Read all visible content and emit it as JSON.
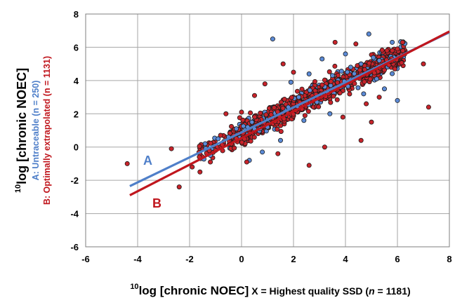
{
  "chart_data": {
    "type": "scatter",
    "x_axis": {
      "label_sup": "10",
      "label_main": "log [chronic NOEC]",
      "label_rest": " X = Highest quality SSD (",
      "label_n": "n",
      "label_end": " = 1181)",
      "range": [
        -6,
        8
      ],
      "ticks": [
        "-6",
        "-4",
        "-2",
        "0",
        "2",
        "4",
        "6",
        "8"
      ]
    },
    "y_axis": {
      "label_sup": "10",
      "label_main": "log [chronic NOEC]",
      "line_a": "A: Untraceable (n = 250)",
      "line_b": "B: Optimally extrapolated (n = 1131)",
      "range": [
        -6,
        8
      ],
      "ticks": [
        "-6",
        "-4",
        "-2",
        "0",
        "2",
        "4",
        "6",
        "8"
      ]
    },
    "grid": true,
    "series": [
      {
        "name": "A: Untraceable (n = 250)",
        "short": "A",
        "color": "#4f7fc9",
        "marker_color": "#5b8ad6",
        "fit": {
          "x": [
            -4.3,
            8.0
          ],
          "y": [
            -2.35,
            6.9
          ]
        },
        "points": [
          [
            1.2,
            6.5
          ],
          [
            4.9,
            6.8
          ],
          [
            5.8,
            6.3
          ],
          [
            5.3,
            5.2
          ],
          [
            4.6,
            5.0
          ],
          [
            4.2,
            4.8
          ],
          [
            3.8,
            3.6
          ],
          [
            3.1,
            5.3
          ],
          [
            2.6,
            4.4
          ],
          [
            2.2,
            3.0
          ],
          [
            1.8,
            2.4
          ],
          [
            1.0,
            1.2
          ],
          [
            0.4,
            1.5
          ],
          [
            -0.5,
            0.6
          ],
          [
            -1.2,
            -0.5
          ],
          [
            -1.4,
            0.2
          ],
          [
            0.3,
            -0.8
          ],
          [
            5.2,
            4.1
          ],
          [
            6.0,
            2.8
          ],
          [
            5.5,
            3.5
          ],
          [
            3.4,
            2.0
          ],
          [
            2.9,
            2.7
          ],
          [
            1.5,
            0.4
          ],
          [
            0.8,
            -0.3
          ],
          [
            4.0,
            5.6
          ],
          [
            3.5,
            4.3
          ],
          [
            2.4,
            1.6
          ],
          [
            -0.2,
            1.1
          ],
          [
            1.9,
            3.9
          ],
          [
            4.7,
            3.2
          ]
        ]
      },
      {
        "name": "B: Optimally extrapolated (n = 1131)",
        "short": "B",
        "color": "#c0161d",
        "marker_color": "#c8232a",
        "fit": {
          "x": [
            -4.3,
            8.0
          ],
          "y": [
            -2.9,
            6.95
          ]
        },
        "points": [
          [
            -4.4,
            -1.0
          ],
          [
            -2.7,
            -0.1
          ],
          [
            -2.4,
            -2.4
          ],
          [
            -1.6,
            -1.5
          ],
          [
            -1.0,
            -0.2
          ],
          [
            -0.6,
            2.0
          ],
          [
            0.0,
            2.1
          ],
          [
            0.5,
            3.1
          ],
          [
            2.6,
            -1.1
          ],
          [
            3.2,
            0.0
          ],
          [
            4.6,
            0.4
          ],
          [
            5.0,
            1.5
          ],
          [
            5.6,
            5.8
          ],
          [
            6.2,
            6.3
          ],
          [
            7.0,
            5.0
          ],
          [
            7.2,
            2.4
          ],
          [
            3.6,
            6.3
          ],
          [
            4.4,
            6.2
          ],
          [
            1.6,
            5.0
          ],
          [
            2.0,
            4.5
          ],
          [
            0.9,
            3.8
          ],
          [
            3.9,
            1.8
          ],
          [
            1.4,
            -0.4
          ],
          [
            0.2,
            -0.9
          ],
          [
            -1.9,
            -1.2
          ],
          [
            -1.2,
            -0.9
          ],
          [
            5.3,
            3.0
          ],
          [
            4.8,
            2.6
          ],
          [
            6.0,
            5.9
          ],
          [
            5.9,
            4.7
          ]
        ]
      }
    ],
    "cloud": {
      "center_slope": 0.76,
      "center_intercept": 0.9,
      "spread": 0.9,
      "x_min": -1.7,
      "x_max": 6.3
    }
  }
}
